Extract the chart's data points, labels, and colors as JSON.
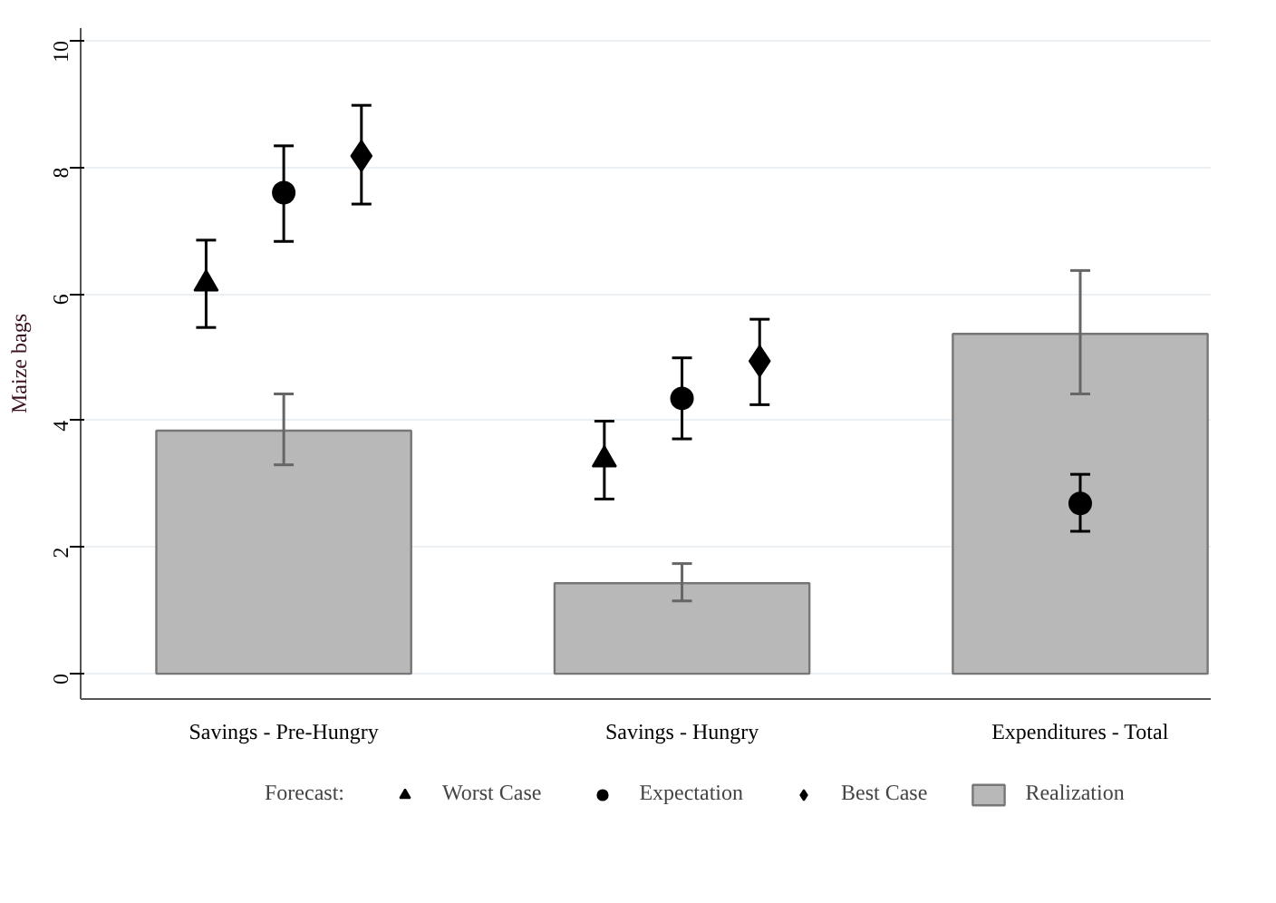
{
  "chart_data": {
    "type": "bar",
    "ylabel": "Maize bags",
    "legend_title": "Forecast:",
    "categories": [
      "Savings - Pre-Hungry",
      "Savings - Hungry",
      "Expenditures - Total"
    ],
    "series": [
      {
        "name": "Worst Case",
        "type": "scatter",
        "marker": "triangle",
        "color": "#000000",
        "values": [
          6.16,
          3.38,
          null
        ],
        "errors": [
          [
            5.47,
            6.85
          ],
          [
            2.76,
            3.99
          ],
          null
        ]
      },
      {
        "name": "Expectation",
        "type": "scatter",
        "marker": "circle",
        "color": "#000000",
        "values": [
          7.6,
          4.35,
          2.69
        ],
        "errors": [
          [
            6.83,
            8.34
          ],
          [
            3.71,
            4.99
          ],
          [
            2.25,
            3.15
          ]
        ]
      },
      {
        "name": "Best Case",
        "type": "scatter",
        "marker": "diamond",
        "color": "#000000",
        "values": [
          8.18,
          4.94,
          null
        ],
        "errors": [
          [
            7.42,
            8.98
          ],
          [
            4.25,
            5.6
          ],
          null
        ]
      },
      {
        "name": "Realization",
        "color": "#b8b8b8",
        "values": [
          3.84,
          1.43,
          5.37
        ],
        "errors": [
          [
            3.3,
            4.42
          ],
          [
            1.15,
            1.74
          ],
          [
            4.42,
            6.37
          ]
        ]
      }
    ],
    "ylim": [
      -0.4,
      10.2
    ],
    "yticks": [
      0,
      2,
      4,
      6,
      8,
      10
    ],
    "grid": "y",
    "legend": "bottom"
  }
}
